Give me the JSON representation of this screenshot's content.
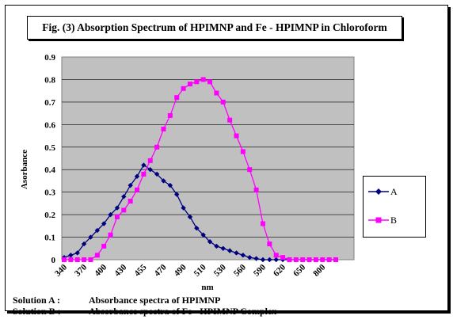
{
  "chart_data": {
    "type": "line",
    "title": "Fig. (3) Absorption Spectrum of HPIMNP and Fe - HPIMNP in Chloroform",
    "xlabel": "nm",
    "ylabel": "Asorbance",
    "ylim": [
      0,
      0.9
    ],
    "yticks": [
      "0",
      "0.1",
      "0.2",
      "0.3",
      "0.4",
      "0.5",
      "0.6",
      "0.7",
      "0.8",
      "0.9"
    ],
    "xtick_labels": [
      "340",
      "370",
      "400",
      "430",
      "455",
      "470",
      "490",
      "510",
      "530",
      "560",
      "590",
      "620",
      "650",
      "800"
    ],
    "grid": true,
    "legend_position": "right",
    "series": [
      {
        "name": "A",
        "color": "#000080",
        "marker": "diamond",
        "values": [
          0.01,
          0.02,
          0.03,
          0.07,
          0.1,
          0.13,
          0.16,
          0.2,
          0.23,
          0.28,
          0.33,
          0.37,
          0.42,
          0.4,
          0.38,
          0.35,
          0.33,
          0.29,
          0.23,
          0.19,
          0.14,
          0.11,
          0.08,
          0.06,
          0.05,
          0.04,
          0.03,
          0.02,
          0.01,
          0.005,
          0,
          0,
          0,
          0,
          0,
          0,
          0,
          0,
          0,
          0,
          0,
          0
        ]
      },
      {
        "name": "B",
        "color": "#ff00ff",
        "marker": "square",
        "values": [
          0,
          0,
          0,
          0,
          0,
          0.02,
          0.06,
          0.11,
          0.19,
          0.22,
          0.26,
          0.31,
          0.38,
          0.44,
          0.5,
          0.58,
          0.64,
          0.72,
          0.76,
          0.78,
          0.79,
          0.8,
          0.79,
          0.74,
          0.7,
          0.62,
          0.55,
          0.48,
          0.4,
          0.31,
          0.16,
          0.07,
          0.02,
          0.01,
          0,
          0,
          0,
          0,
          0,
          0,
          0,
          0
        ]
      }
    ]
  },
  "captions": {
    "a_label": "Solution  A   :",
    "a_text": "Absorbance spectra of  HPIMNP",
    "b_label": "Solution  B   :",
    "b_text": "Absorbance spectra of Fe - HPIMNP Complex"
  }
}
